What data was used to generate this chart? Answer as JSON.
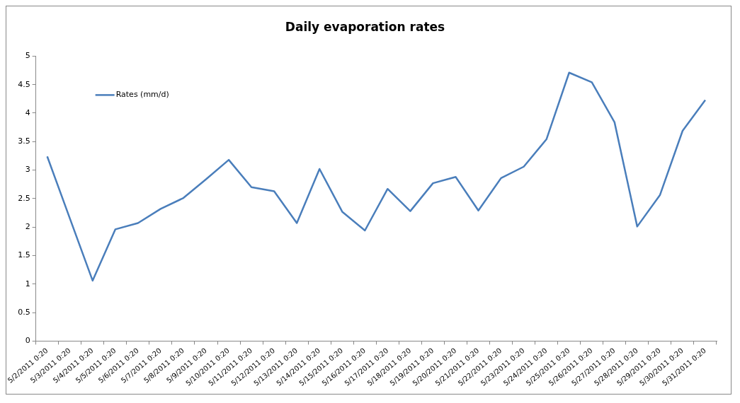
{
  "chart_data": {
    "type": "line",
    "title": "Daily evaporation rates",
    "categories": [
      "5/2/2011 0:20",
      "5/3/2011 0:20",
      "5/4/2011 0:20",
      "5/5/2011 0:20",
      "5/6/2011 0:20",
      "5/7/2011 0:20",
      "5/8/2011 0:20",
      "5/9/2011 0:20",
      "5/10/2011 0:20",
      "5/11/2011 0:20",
      "5/12/2011 0:20",
      "5/13/2011 0:20",
      "5/14/2011 0:20",
      "5/15/2011 0:20",
      "5/16/2011 0:20",
      "5/17/2011 0:20",
      "5/18/2011 0:20",
      "5/19/2011 0:20",
      "5/20/2011 0:20",
      "5/21/2011 0:20",
      "5/22/2011 0:20",
      "5/23/2011 0:20",
      "5/24/2011 0:20",
      "5/25/2011 0:20",
      "5/26/2011 0:20",
      "5/27/2011 0:20",
      "5/28/2011 0:20",
      "5/29/2011 0:20",
      "5/30/2011 0:20",
      "5/31/2011 0:20"
    ],
    "series": [
      {
        "name": "Rates (mm/d)",
        "color": "#4a7ebb",
        "values": [
          3.24,
          2.15,
          1.06,
          1.96,
          2.07,
          2.32,
          2.51,
          2.84,
          3.18,
          2.7,
          2.63,
          2.07,
          3.02,
          2.27,
          1.94,
          2.67,
          2.28,
          2.77,
          2.88,
          2.29,
          2.86,
          3.06,
          3.54,
          4.71,
          4.54,
          3.84,
          2.01,
          2.56,
          3.69,
          4.23
        ]
      }
    ],
    "ylim": [
      0,
      5
    ],
    "yticks": [
      0,
      0.5,
      1,
      1.5,
      2,
      2.5,
      3,
      3.5,
      4,
      4.5,
      5
    ],
    "grid": false,
    "legend": "top left",
    "marker": "none",
    "line_style": "solid"
  }
}
